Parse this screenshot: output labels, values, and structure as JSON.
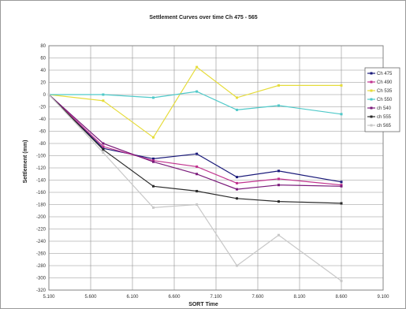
{
  "chart_data": {
    "type": "line",
    "title": "Settlement Curves over time Ch 475 - 565",
    "xlabel": "SORT Time",
    "ylabel": "Settlement (mm)",
    "xlim": [
      5.1,
      9.1
    ],
    "ylim": [
      -320,
      80
    ],
    "x_ticks": [
      "5.100",
      "5.600",
      "6.100",
      "6.600",
      "7.100",
      "7.600",
      "8.100",
      "8.600",
      "9.100"
    ],
    "y_ticks": [
      "80",
      "60",
      "40",
      "20",
      "0",
      "-20",
      "-40",
      "-60",
      "-80",
      "-100",
      "-120",
      "-140",
      "-160",
      "-180",
      "-200",
      "-220",
      "-240",
      "-260",
      "-280",
      "-300",
      "-320"
    ],
    "grid": true,
    "legend_position": "right",
    "series": [
      {
        "name": "Ch 475",
        "color": "#1a1a7a",
        "x": [
          5.1,
          5.75,
          6.35,
          6.87,
          7.35,
          7.85,
          8.6
        ],
        "y": [
          0,
          -88,
          -105,
          -97,
          -135,
          -125,
          -143
        ]
      },
      {
        "name": "Ch 490",
        "color": "#c0328e",
        "x": [
          5.1,
          5.75,
          6.35,
          6.87,
          7.35,
          7.85,
          8.6
        ],
        "y": [
          0,
          -85,
          -108,
          -118,
          -145,
          -138,
          -148
        ]
      },
      {
        "name": "Ch 535",
        "color": "#e6dc3a",
        "x": [
          5.1,
          5.75,
          6.35,
          6.87,
          7.35,
          7.85,
          8.6
        ],
        "y": [
          0,
          -10,
          -70,
          45,
          -5,
          15,
          15
        ]
      },
      {
        "name": "Ch 550",
        "color": "#4fc9c9",
        "x": [
          5.1,
          5.75,
          6.35,
          6.87,
          7.35,
          7.85,
          8.6
        ],
        "y": [
          0,
          0,
          -5,
          5,
          -25,
          -18,
          -32
        ]
      },
      {
        "name": "ch 540",
        "color": "#7a1a7a",
        "x": [
          5.1,
          5.75,
          6.35,
          6.87,
          7.35,
          7.85,
          8.6
        ],
        "y": [
          0,
          -80,
          -110,
          -130,
          -155,
          -148,
          -150
        ]
      },
      {
        "name": "ch 555",
        "color": "#2a2a2a",
        "x": [
          5.1,
          5.75,
          6.35,
          6.87,
          7.35,
          7.85,
          8.6
        ],
        "y": [
          0,
          -90,
          -150,
          -158,
          -170,
          -175,
          -178
        ]
      },
      {
        "name": "ch 565",
        "color": "#c8c8c8",
        "x": [
          5.1,
          5.75,
          6.35,
          6.87,
          7.35,
          7.85,
          8.6
        ],
        "y": [
          0,
          -95,
          -185,
          -180,
          -280,
          -230,
          -305
        ]
      }
    ]
  }
}
